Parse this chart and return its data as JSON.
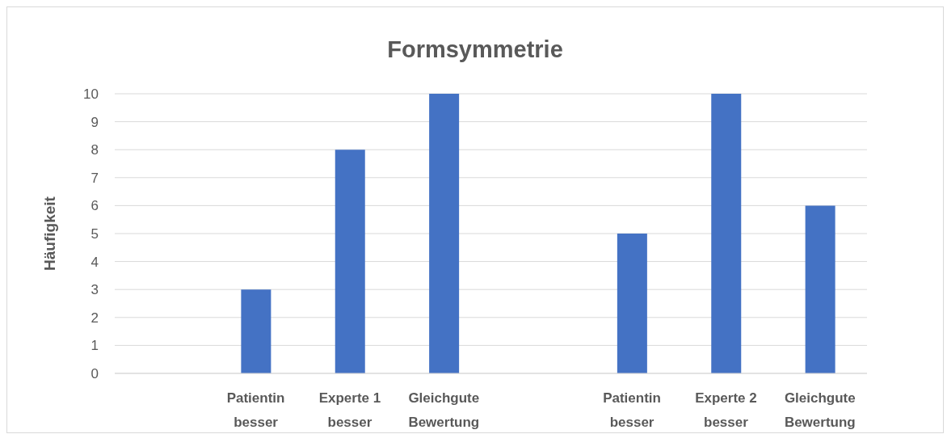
{
  "chart_data": {
    "type": "bar",
    "title": "Formsymmetrie",
    "ylabel": "Häufigkeit",
    "categories": [
      null,
      "Patientin besser",
      "Experte 1 besser",
      "Gleichgute Bewertung",
      null,
      "Patientin besser",
      "Experte 2 besser",
      "Gleichgute Bewertung"
    ],
    "values": [
      null,
      3,
      8,
      10,
      null,
      5,
      10,
      6
    ],
    "color": "#4472c4",
    "ylim": [
      0,
      10
    ],
    "yticks": [
      0,
      1,
      2,
      3,
      4,
      5,
      6,
      7,
      8,
      9,
      10
    ],
    "grid": "y"
  }
}
